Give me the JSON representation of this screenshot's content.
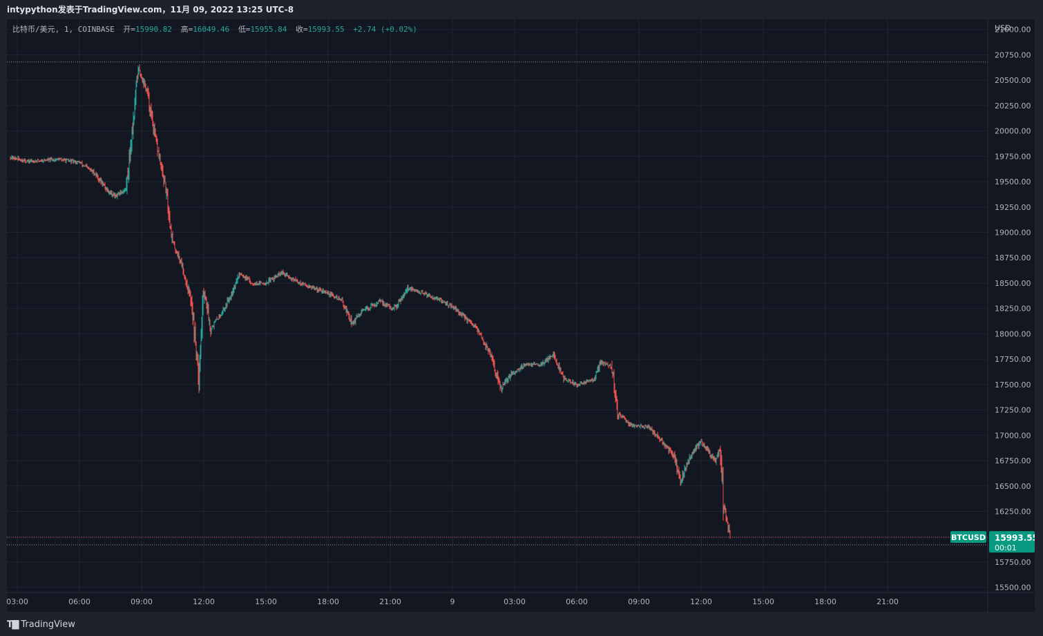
{
  "header": {
    "title": "intypython发表于TradingView.com，11月 09, 2022 13:25 UTC-8"
  },
  "legend": {
    "symbol": "比特币/美元, 1, COINBASE",
    "open_label": "开=",
    "open": "15990.82",
    "high_label": "高=",
    "high": "16049.46",
    "low_label": "低=",
    "low": "15955.84",
    "close_label": "收=",
    "close": "15993.55",
    "change": "+2.74 (+0.02%)"
  },
  "price_axis": {
    "currency": "USD"
  },
  "last_price": {
    "ticker": "BTCUSD",
    "price": "15993.55",
    "countdown": "00:01"
  },
  "footer": {
    "logo_text": "TradingView"
  },
  "colors": {
    "up": "#26a69a",
    "down": "#ef5350",
    "background": "#131722",
    "grid": "#1f2430",
    "ticker_badge": "#089981"
  },
  "chart_data": {
    "type": "candlestick",
    "ylabel": "USD",
    "ylim": [
      15450,
      21100
    ],
    "y_ticks": [
      15500,
      15750,
      16000,
      16250,
      16500,
      16750,
      17000,
      17250,
      17500,
      17750,
      18000,
      18250,
      18500,
      18750,
      19000,
      19250,
      19500,
      19750,
      20000,
      20250,
      20500,
      20750,
      21000
    ],
    "x_ticks": [
      "03:00",
      "06:00",
      "09:00",
      "12:00",
      "15:00",
      "18:00",
      "21:00",
      "9",
      "03:00",
      "06:00",
      "09:00",
      "12:00",
      "15:00",
      "18:00",
      "21:00"
    ],
    "reference_levels": [
      20680,
      15920
    ],
    "last_price": 15993.55,
    "price_path": [
      {
        "t": "02:40",
        "p": 19740
      },
      {
        "t": "03:30",
        "p": 19700
      },
      {
        "t": "05:00",
        "p": 19720
      },
      {
        "t": "06:00",
        "p": 19690
      },
      {
        "t": "06:45",
        "p": 19580
      },
      {
        "t": "07:20",
        "p": 19420
      },
      {
        "t": "07:45",
        "p": 19350
      },
      {
        "t": "08:15",
        "p": 19430
      },
      {
        "t": "08:40",
        "p": 20250
      },
      {
        "t": "08:50",
        "p": 20620
      },
      {
        "t": "09:15",
        "p": 20400
      },
      {
        "t": "09:40",
        "p": 19920
      },
      {
        "t": "10:10",
        "p": 19420
      },
      {
        "t": "10:30",
        "p": 18900
      },
      {
        "t": "10:55",
        "p": 18700
      },
      {
        "t": "11:25",
        "p": 18300
      },
      {
        "t": "11:45",
        "p": 17600
      },
      {
        "t": "12:00",
        "p": 18450
      },
      {
        "t": "12:20",
        "p": 18050
      },
      {
        "t": "13:00",
        "p": 18250
      },
      {
        "t": "13:45",
        "p": 18600
      },
      {
        "t": "14:20",
        "p": 18500
      },
      {
        "t": "15:00",
        "p": 18500
      },
      {
        "t": "15:45",
        "p": 18600
      },
      {
        "t": "16:40",
        "p": 18500
      },
      {
        "t": "18:00",
        "p": 18400
      },
      {
        "t": "18:40",
        "p": 18330
      },
      {
        "t": "19:10",
        "p": 18100
      },
      {
        "t": "19:40",
        "p": 18220
      },
      {
        "t": "20:30",
        "p": 18320
      },
      {
        "t": "21:10",
        "p": 18240
      },
      {
        "t": "21:50",
        "p": 18450
      },
      {
        "t": "23:00",
        "p": 18370
      },
      {
        "t": "00:00",
        "p": 18270
      },
      {
        "t": "01:10",
        "p": 18050
      },
      {
        "t": "01:50",
        "p": 17800
      },
      {
        "t": "02:20",
        "p": 17450
      },
      {
        "t": "02:50",
        "p": 17600
      },
      {
        "t": "03:30",
        "p": 17700
      },
      {
        "t": "04:20",
        "p": 17700
      },
      {
        "t": "04:50",
        "p": 17800
      },
      {
        "t": "05:25",
        "p": 17550
      },
      {
        "t": "06:00",
        "p": 17500
      },
      {
        "t": "06:50",
        "p": 17550
      },
      {
        "t": "07:10",
        "p": 17720
      },
      {
        "t": "07:40",
        "p": 17680
      },
      {
        "t": "08:00",
        "p": 17200
      },
      {
        "t": "08:40",
        "p": 17100
      },
      {
        "t": "09:30",
        "p": 17080
      },
      {
        "t": "10:40",
        "p": 16800
      },
      {
        "t": "11:00",
        "p": 16550
      },
      {
        "t": "11:30",
        "p": 16800
      },
      {
        "t": "12:00",
        "p": 16950
      },
      {
        "t": "12:40",
        "p": 16750
      },
      {
        "t": "12:55",
        "p": 16860
      },
      {
        "t": "13:05",
        "p": 16300
      },
      {
        "t": "13:25",
        "p": 15993.55
      }
    ]
  }
}
